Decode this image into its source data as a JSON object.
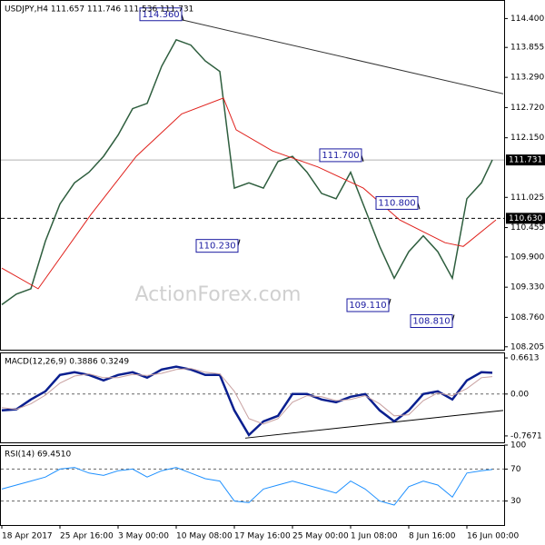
{
  "chart_data": [
    {
      "type": "line",
      "title": "USDJPY,H4  111.657 111.746 111.536 111.731",
      "watermark": "ActionForex.com",
      "xlim": [
        0,
        272
      ],
      "ylim": [
        108.15,
        114.75
      ],
      "yticks": [
        {
          "value": 114.4,
          "label": "114.400"
        },
        {
          "value": 113.855,
          "label": "113.855"
        },
        {
          "value": 113.29,
          "label": "113.290"
        },
        {
          "value": 112.72,
          "label": "112.720"
        },
        {
          "value": 112.15,
          "label": "112.150"
        },
        {
          "value": 111.025,
          "label": "111.025"
        },
        {
          "value": 110.455,
          "label": "110.455"
        },
        {
          "value": 109.9,
          "label": "109.900"
        },
        {
          "value": 109.33,
          "label": "109.330"
        },
        {
          "value": 108.76,
          "label": "108.760"
        },
        {
          "value": 108.205,
          "label": "108.205"
        }
      ],
      "series": [
        {
          "color": "#2e5e3e",
          "x": [
            0,
            8,
            16,
            24,
            32,
            40,
            48,
            56,
            64,
            72,
            80,
            88,
            96,
            104,
            112,
            120,
            128,
            136,
            144,
            152,
            160,
            168,
            176,
            184,
            192,
            200,
            208,
            216,
            224,
            232,
            240,
            248,
            256,
            264,
            270
          ],
          "values": [
            109.0,
            109.2,
            109.3,
            110.2,
            110.9,
            111.3,
            111.5,
            111.8,
            112.2,
            112.7,
            112.8,
            113.5,
            114.0,
            113.9,
            113.6,
            113.4,
            111.2,
            111.3,
            111.2,
            111.7,
            111.8,
            111.5,
            111.1,
            111.0,
            111.5,
            110.8,
            110.1,
            109.5,
            110.0,
            110.3,
            110.0,
            109.5,
            111.0,
            111.3,
            111.731
          ]
        },
        {
          "color": "#e0201b",
          "x": [
            0,
            20,
            49,
            74,
            99,
            122,
            129,
            149,
            174,
            199,
            219,
            244,
            254,
            272
          ],
          "values": [
            109.69,
            109.3,
            110.7,
            111.8,
            112.6,
            112.9,
            112.3,
            111.9,
            111.6,
            111.2,
            110.6,
            110.17,
            110.1,
            110.6
          ]
        }
      ],
      "trendlines": [
        {
          "color": "#333333",
          "x": [
            96,
            276
          ],
          "y": [
            114.4,
            112.98
          ]
        }
      ],
      "hlines": [
        {
          "value": 111.731,
          "label": "111.731",
          "color": "#b0b0b0"
        },
        {
          "value": 110.63,
          "label": "110.630",
          "color": "#000000"
        }
      ],
      "annotations": [
        {
          "x": 100,
          "value": 114.36,
          "label": "114.360"
        },
        {
          "x": 131,
          "value": 110.23,
          "label": "110.230"
        },
        {
          "x": 199,
          "value": 111.7,
          "label": "111.700"
        },
        {
          "x": 230,
          "value": 110.8,
          "label": "110.800"
        },
        {
          "x": 214,
          "value": 109.11,
          "label": "109.110"
        },
        {
          "x": 249,
          "value": 108.81,
          "label": "108.810"
        }
      ]
    },
    {
      "type": "line",
      "title": "MACD(12,26,9) 0.3886 0.3249",
      "xlim": [
        0,
        272
      ],
      "ylim": [
        -0.885,
        0.762
      ],
      "yticks": [
        {
          "value": 0.6613,
          "label": "0.6613"
        },
        {
          "value": 0,
          "label": "0.00"
        },
        {
          "value": -0.7671,
          "label": "-0.7671"
        }
      ],
      "series": [
        {
          "color": "#0a1f8f",
          "x": [
            0,
            8,
            16,
            24,
            32,
            40,
            48,
            56,
            64,
            72,
            80,
            88,
            96,
            104,
            112,
            120,
            128,
            136,
            144,
            152,
            160,
            168,
            176,
            184,
            192,
            200,
            208,
            216,
            224,
            232,
            240,
            248,
            256,
            264,
            270
          ],
          "values": [
            -0.3,
            -0.28,
            -0.1,
            0.05,
            0.35,
            0.4,
            0.35,
            0.25,
            0.35,
            0.4,
            0.3,
            0.45,
            0.5,
            0.45,
            0.35,
            0.35,
            -0.3,
            -0.75,
            -0.5,
            -0.4,
            0.0,
            0.0,
            -0.1,
            -0.15,
            -0.05,
            0.0,
            -0.3,
            -0.5,
            -0.3,
            0.0,
            0.05,
            -0.1,
            0.25,
            0.4,
            0.39
          ]
        },
        {
          "color": "#c8a0a0",
          "x": [
            0,
            8,
            16,
            24,
            32,
            40,
            48,
            56,
            64,
            72,
            80,
            88,
            96,
            104,
            112,
            120,
            128,
            136,
            144,
            152,
            160,
            168,
            176,
            184,
            192,
            200,
            208,
            216,
            224,
            232,
            240,
            248,
            256,
            264,
            270
          ],
          "values": [
            -0.25,
            -0.28,
            -0.18,
            -0.02,
            0.2,
            0.33,
            0.37,
            0.3,
            0.3,
            0.36,
            0.34,
            0.38,
            0.45,
            0.47,
            0.4,
            0.37,
            0.05,
            -0.45,
            -0.55,
            -0.45,
            -0.15,
            -0.03,
            -0.05,
            -0.12,
            -0.1,
            -0.03,
            -0.18,
            -0.4,
            -0.38,
            -0.12,
            0.02,
            -0.03,
            0.1,
            0.3,
            0.32
          ]
        }
      ],
      "trendlines": [
        {
          "color": "#000000",
          "x": [
            134,
            276
          ],
          "y": [
            -0.807,
            -0.3
          ]
        }
      ]
    },
    {
      "type": "line",
      "title": "RSI(14) 69.4510",
      "xlim": [
        0,
        272
      ],
      "ylim": [
        0,
        100
      ],
      "yticks": [
        30,
        70,
        100
      ],
      "xticks": [
        {
          "value": 0,
          "label": "18 Apr 2017"
        },
        {
          "value": 32,
          "label": "25 Apr 16:00"
        },
        {
          "value": 64,
          "label": "3 May 00:00"
        },
        {
          "value": 96,
          "label": "10 May 08:00"
        },
        {
          "value": 128,
          "label": "17 May 16:00"
        },
        {
          "value": 160,
          "label": "25 May 00:00"
        },
        {
          "value": 192,
          "label": "1 Jun 08:00"
        },
        {
          "value": 224,
          "label": "8 Jun 16:00"
        },
        {
          "value": 256,
          "label": "16 Jun 00:00"
        }
      ],
      "series": [
        {
          "color": "#1e90ff",
          "x": [
            0,
            8,
            16,
            24,
            32,
            40,
            48,
            56,
            64,
            72,
            80,
            88,
            96,
            104,
            112,
            120,
            128,
            136,
            144,
            152,
            160,
            168,
            176,
            184,
            192,
            200,
            208,
            216,
            224,
            232,
            240,
            248,
            256,
            264,
            270
          ],
          "values": [
            45,
            50,
            55,
            60,
            70,
            72,
            65,
            62,
            68,
            70,
            60,
            68,
            72,
            65,
            58,
            55,
            30,
            28,
            45,
            50,
            55,
            50,
            45,
            40,
            55,
            45,
            30,
            25,
            48,
            55,
            50,
            35,
            65,
            68,
            69.451
          ]
        }
      ]
    }
  ]
}
